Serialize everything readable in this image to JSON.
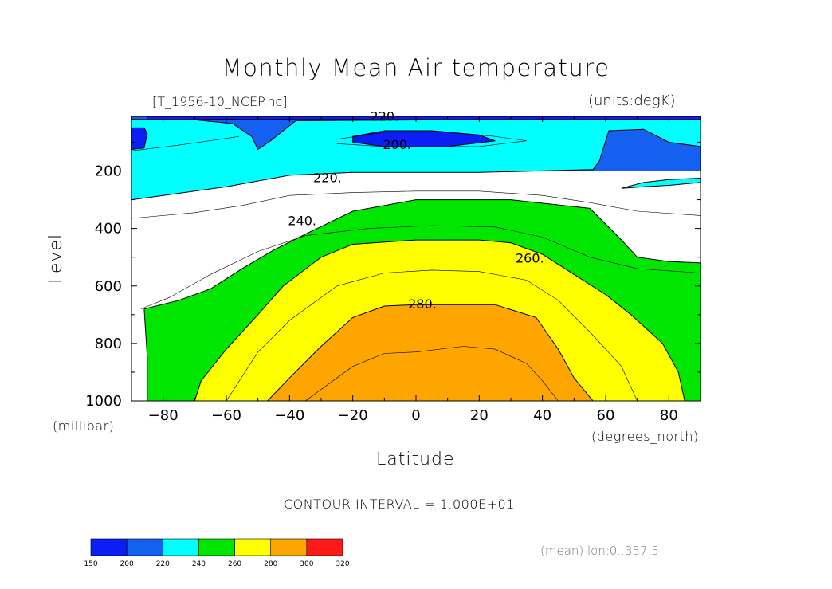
{
  "chart_data": {
    "type": "heatmap",
    "plot": "filled contour",
    "title": "Monthly Mean Air temperature",
    "dataset_label": "[T_1956-10_NCEP.nc]",
    "units_label": "(units:degK)",
    "xlabel": "Latitude",
    "x_units": "(degrees_north)",
    "ylabel": "Level",
    "y_units": "(millibar)",
    "xlim": [
      -90,
      90
    ],
    "ylim": [
      1000,
      10
    ],
    "y_reversed": true,
    "x_ticks": [
      -80,
      -60,
      -40,
      -20,
      0,
      20,
      40,
      60,
      80
    ],
    "x_tick_labels": [
      "−80",
      "−60",
      "−40",
      "−20",
      "0",
      "20",
      "40",
      "60",
      "80"
    ],
    "y_ticks": [
      200,
      400,
      600,
      800,
      1000
    ],
    "y_tick_labels": [
      "200",
      "400",
      "600",
      "800",
      "1000"
    ],
    "contour_interval_text": "CONTOUR INTERVAL = 1.000E+01",
    "footnote": "(mean) lon:0..357.5",
    "contour_labels": [
      {
        "text": "220.",
        "x": -10,
        "y": 12
      },
      {
        "text": "200.",
        "x": -6,
        "y": 110
      },
      {
        "text": "220.",
        "x": -28,
        "y": 225
      },
      {
        "text": "240.",
        "x": -36,
        "y": 375
      },
      {
        "text": "260.",
        "x": 36,
        "y": 505
      },
      {
        "text": "280.",
        "x": 2,
        "y": 665
      }
    ],
    "colorbar": {
      "levels": [
        150,
        200,
        220,
        240,
        260,
        280,
        300,
        320
      ],
      "level_labels": [
        "150",
        "200",
        "220",
        "240",
        "260",
        "280",
        "300",
        "320"
      ],
      "colors": [
        "#0a1ef5",
        "#1460f0",
        "#00ffff",
        "#00e600",
        "#ffff00",
        "#ffa500",
        "#ff1a1a"
      ]
    },
    "bands": [
      {
        "level": 200,
        "color": "#0a1ef5",
        "points": [
          [
            -85,
            10
          ],
          [
            90,
            10
          ],
          [
            90,
            20
          ],
          [
            -85,
            20
          ]
        ]
      },
      {
        "level": 200,
        "color": "#0a1ef5",
        "points": [
          [
            -90,
            50
          ],
          [
            -86,
            50
          ],
          [
            -85,
            70
          ],
          [
            -86,
            120
          ],
          [
            -90,
            125
          ]
        ]
      },
      {
        "level": 200,
        "color": "#0a1ef5",
        "points": [
          [
            -20,
            80
          ],
          [
            -10,
            60
          ],
          [
            5,
            60
          ],
          [
            20,
            75
          ],
          [
            25,
            95
          ],
          [
            10,
            115
          ],
          [
            -10,
            115
          ],
          [
            -20,
            100
          ]
        ]
      },
      {
        "level": 220,
        "color": "#1460f0",
        "points": [
          [
            -90,
            10
          ],
          [
            90,
            10
          ],
          [
            90,
            200
          ],
          [
            -90,
            200
          ]
        ]
      },
      {
        "level": 240,
        "color": "#00ffff",
        "points": [
          [
            -90,
            20
          ],
          [
            -70,
            22
          ],
          [
            -58,
            35
          ],
          [
            -52,
            80
          ],
          [
            -50,
            125
          ],
          [
            -46,
            95
          ],
          [
            -38,
            25
          ],
          [
            45,
            20
          ],
          [
            90,
            20
          ],
          [
            90,
            115
          ],
          [
            80,
            100
          ],
          [
            72,
            55
          ],
          [
            61,
            60
          ],
          [
            58,
            165
          ],
          [
            56,
            195
          ],
          [
            20,
            205
          ],
          [
            -20,
            205
          ],
          [
            -40,
            215
          ],
          [
            -60,
            255
          ],
          [
            -80,
            285
          ],
          [
            -90,
            300
          ],
          [
            -90,
            1000
          ]
        ]
      },
      {
        "level": 240,
        "color": "#00ffff",
        "points": [
          [
            65,
            260
          ],
          [
            72,
            240
          ],
          [
            80,
            230
          ],
          [
            90,
            225
          ],
          [
            90,
            240
          ],
          [
            80,
            250
          ],
          [
            72,
            255
          ]
        ]
      },
      {
        "level": 260,
        "color": "#00e600",
        "points": [
          [
            -90,
            1000
          ],
          [
            -85,
            1000
          ],
          [
            -85,
            850
          ],
          [
            -86,
            680
          ],
          [
            -75,
            650
          ],
          [
            -65,
            610
          ],
          [
            -55,
            540
          ],
          [
            -45,
            475
          ],
          [
            -35,
            420
          ],
          [
            -20,
            340
          ],
          [
            0,
            300
          ],
          [
            30,
            300
          ],
          [
            55,
            330
          ],
          [
            65,
            440
          ],
          [
            70,
            500
          ],
          [
            80,
            515
          ],
          [
            90,
            520
          ],
          [
            90,
            1000
          ]
        ]
      },
      {
        "level": 280,
        "color": "#ffff00",
        "points": [
          [
            -70,
            1000
          ],
          [
            -68,
            930
          ],
          [
            -60,
            820
          ],
          [
            -50,
            700
          ],
          [
            -42,
            600
          ],
          [
            -30,
            500
          ],
          [
            -20,
            455
          ],
          [
            0,
            440
          ],
          [
            20,
            440
          ],
          [
            30,
            450
          ],
          [
            40,
            490
          ],
          [
            50,
            560
          ],
          [
            60,
            630
          ],
          [
            68,
            700
          ],
          [
            78,
            800
          ],
          [
            83,
            900
          ],
          [
            85,
            1000
          ]
        ]
      },
      {
        "level": 300,
        "color": "#ffa500",
        "points": [
          [
            -47,
            1000
          ],
          [
            -40,
            920
          ],
          [
            -30,
            810
          ],
          [
            -20,
            710
          ],
          [
            -10,
            670
          ],
          [
            0,
            665
          ],
          [
            25,
            665
          ],
          [
            38,
            710
          ],
          [
            45,
            820
          ],
          [
            50,
            920
          ],
          [
            56,
            1000
          ]
        ]
      }
    ],
    "contour_lines": [
      [
        [
          -25,
          90
        ],
        [
          -10,
          65
        ],
        [
          10,
          65
        ],
        [
          25,
          80
        ],
        [
          35,
          95
        ],
        [
          20,
          115
        ],
        [
          -10,
          115
        ],
        [
          -25,
          105
        ]
      ],
      [
        [
          -90,
          130
        ],
        [
          -75,
          110
        ],
        [
          -62,
          90
        ],
        [
          -56,
          80
        ]
      ],
      [
        [
          -90,
          365
        ],
        [
          -70,
          345
        ],
        [
          -55,
          320
        ],
        [
          -40,
          285
        ],
        [
          -20,
          275
        ],
        [
          0,
          270
        ],
        [
          20,
          270
        ],
        [
          40,
          285
        ],
        [
          55,
          310
        ],
        [
          70,
          340
        ],
        [
          90,
          355
        ]
      ],
      [
        [
          -87,
          680
        ],
        [
          -78,
          640
        ],
        [
          -65,
          560
        ],
        [
          -50,
          480
        ],
        [
          -35,
          425
        ],
        [
          -15,
          400
        ],
        [
          5,
          390
        ],
        [
          25,
          395
        ],
        [
          40,
          430
        ],
        [
          55,
          500
        ],
        [
          70,
          540
        ],
        [
          90,
          555
        ]
      ],
      [
        [
          -60,
          1000
        ],
        [
          -50,
          830
        ],
        [
          -40,
          720
        ],
        [
          -25,
          600
        ],
        [
          -10,
          555
        ],
        [
          5,
          545
        ],
        [
          20,
          550
        ],
        [
          35,
          580
        ],
        [
          45,
          650
        ],
        [
          55,
          760
        ],
        [
          65,
          880
        ],
        [
          70,
          1000
        ]
      ],
      [
        [
          -35,
          1000
        ],
        [
          -20,
          880
        ],
        [
          -10,
          835
        ],
        [
          0,
          830
        ],
        [
          15,
          810
        ],
        [
          25,
          820
        ],
        [
          35,
          870
        ],
        [
          40,
          930
        ],
        [
          45,
          1000
        ]
      ]
    ]
  }
}
